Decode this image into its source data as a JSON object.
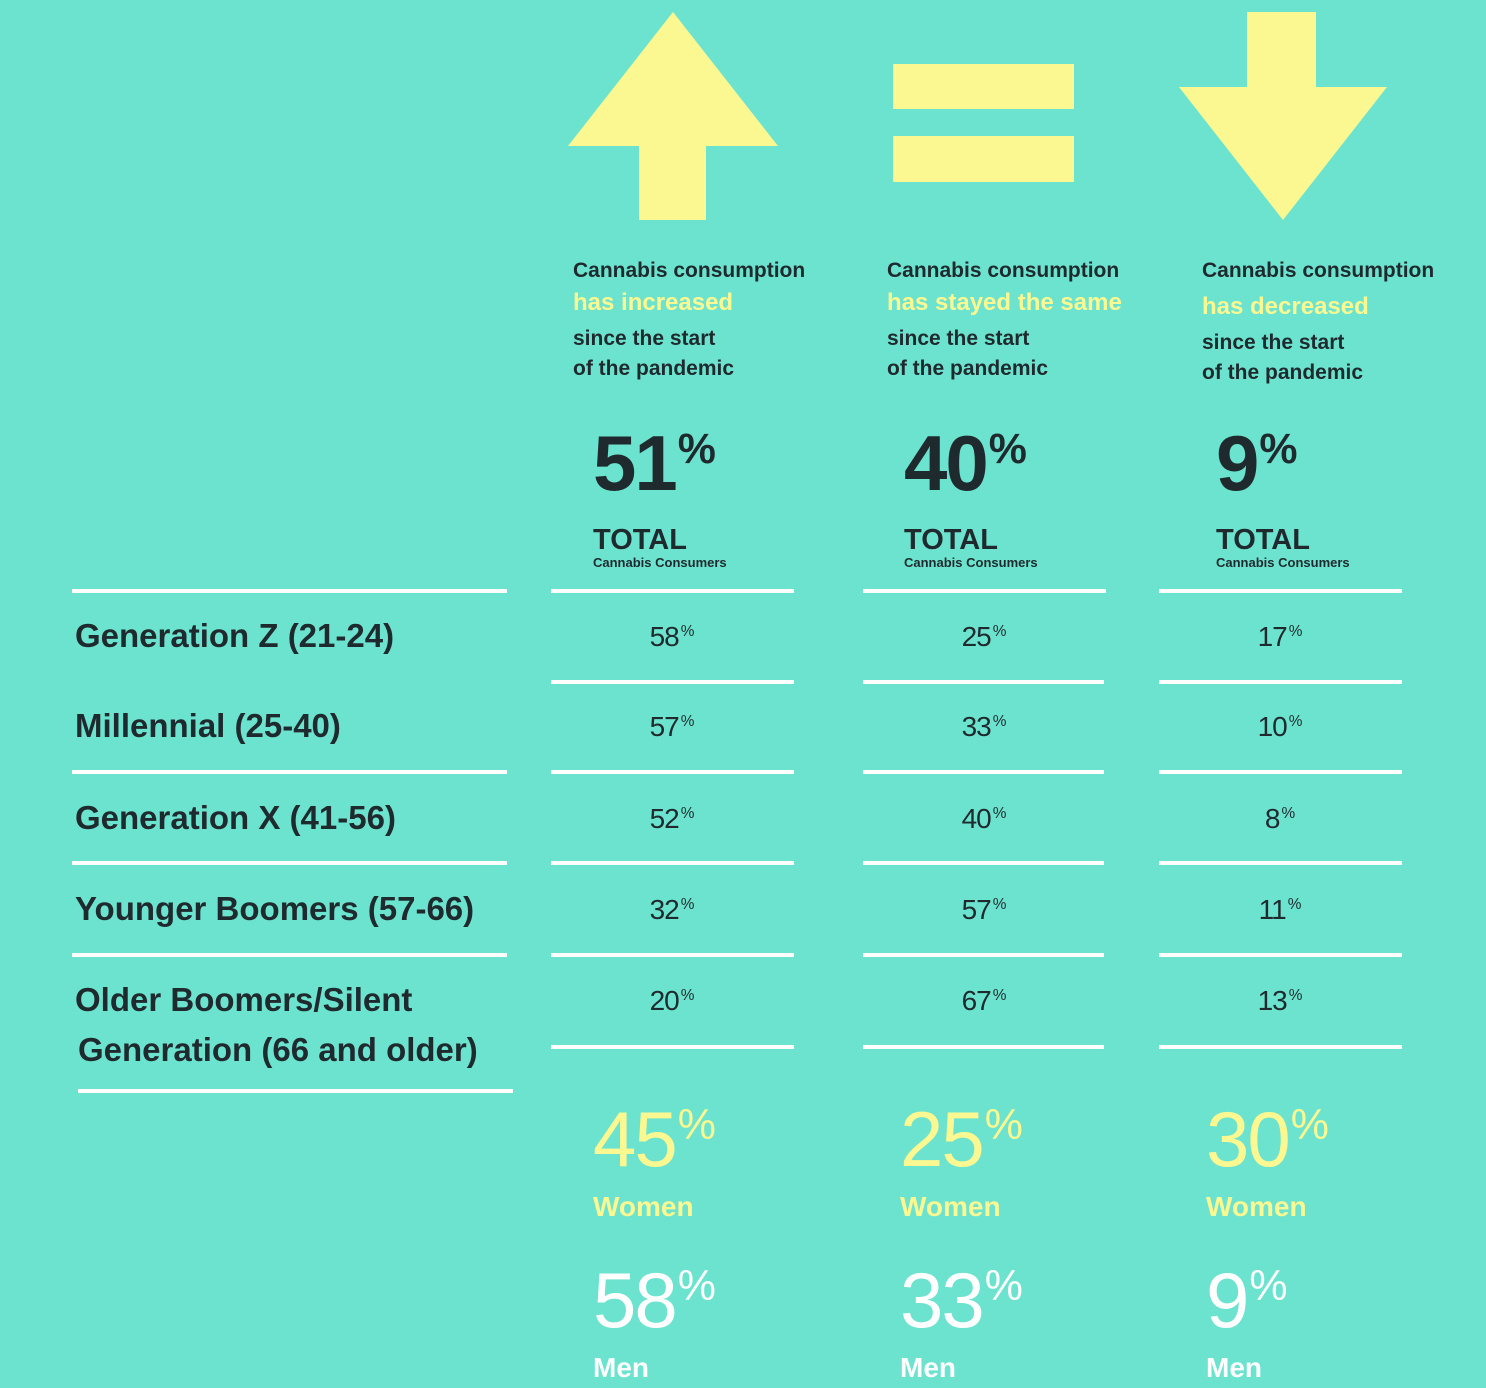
{
  "colors": {
    "background": "#6ce3cf",
    "accent_yellow": "#fbf891",
    "text_dark": "#1f2a2e",
    "rule_white": "#ffffff"
  },
  "columns": [
    {
      "icon": "up-arrow-icon",
      "intro_line1": "Cannabis consumption",
      "intro_highlight": "has increased",
      "intro_line2": "since the start",
      "intro_line3": "of the pandemic",
      "total_value": "51",
      "total_label": "TOTAL",
      "total_sub": "Cannabis Consumers",
      "women_value": "45",
      "women_label": "Women",
      "men_value": "58",
      "men_label": "Men"
    },
    {
      "icon": "equals-icon",
      "intro_line1": "Cannabis consumption",
      "intro_highlight": "has stayed the same",
      "intro_line2": "since the start",
      "intro_line3": "of the pandemic",
      "total_value": "40",
      "total_label": "TOTAL",
      "total_sub": "Cannabis Consumers",
      "women_value": "25",
      "women_label": "Women",
      "men_value": "33",
      "men_label": "Men"
    },
    {
      "icon": "down-arrow-icon",
      "intro_line1": "Cannabis consumption",
      "intro_highlight": "has decreased",
      "intro_line2": "since the start",
      "intro_line3": "of the pandemic",
      "total_value": "9",
      "total_label": "TOTAL",
      "total_sub": "Cannabis Consumers",
      "women_value": "30",
      "women_label": "Women",
      "men_value": "9",
      "men_label": "Men"
    }
  ],
  "percent_sign": "%",
  "rows": [
    {
      "label": "Generation Z  (21-24)",
      "values": [
        "58",
        "25",
        "17"
      ]
    },
    {
      "label": "Millennial (25-40)",
      "values": [
        "57",
        "33",
        "10"
      ]
    },
    {
      "label": "Generation X (41-56)",
      "values": [
        "52",
        "40",
        "8"
      ]
    },
    {
      "label": "Younger Boomers (57-66)",
      "values": [
        "32",
        "57",
        "11"
      ]
    },
    {
      "label_line1": "Older Boomers/Silent",
      "label_line2": "Generation (66 and older)",
      "values": [
        "20",
        "67",
        "13"
      ]
    }
  ]
}
